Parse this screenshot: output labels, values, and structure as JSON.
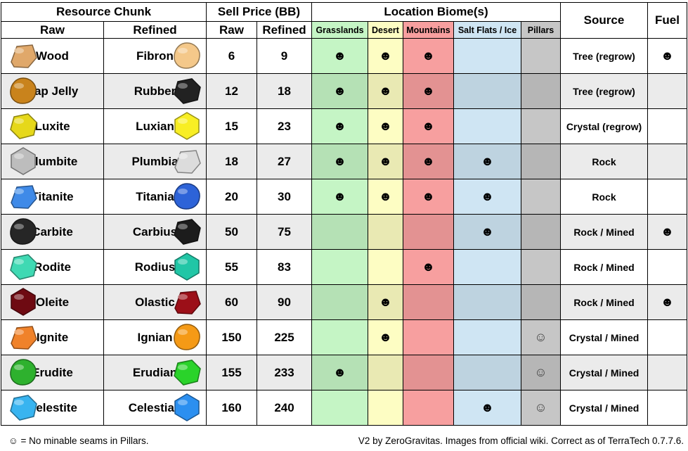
{
  "headers": {
    "resource_chunk": "Resource Chunk",
    "sell_price": "Sell Price (BB)",
    "location_biome": "Location Biome(s)",
    "source": "Source",
    "fuel": "Fuel",
    "raw": "Raw",
    "refined": "Refined",
    "price_raw": "Raw",
    "price_refined": "Refined",
    "biomes": [
      "Grasslands",
      "Desert",
      "Mountains",
      "Salt Flats / Ice",
      "Pillars"
    ]
  },
  "biome_colors": [
    "#c5f5c5",
    "#fdfdc3",
    "#f79f9f",
    "#cfe5f3",
    "#c6c6c6"
  ],
  "symbols": {
    "present": "☻",
    "no_seams": "☺"
  },
  "chart_data": {
    "type": "table",
    "columns": [
      "Raw",
      "Refined",
      "Raw Price",
      "Refined Price",
      "Grasslands",
      "Desert",
      "Mountains",
      "Salt Flats / Ice",
      "Pillars",
      "Source",
      "Fuel"
    ],
    "rows": [
      {
        "raw": "Wood",
        "refined": "Fibron",
        "raw_price": "6",
        "refined_price": "9",
        "biomes": [
          "☻",
          "☻",
          "☻",
          "",
          ""
        ],
        "source": "Tree (regrow)",
        "fuel": "☻",
        "raw_icon": "wood-chunk-icon",
        "ref_icon": "fibron-icon",
        "raw_color": "#e0a86a",
        "ref_color": "#f4c88a"
      },
      {
        "raw": "Sap Jelly",
        "refined": "Rubber",
        "raw_price": "12",
        "refined_price": "18",
        "biomes": [
          "☻",
          "☻",
          "☻",
          "",
          ""
        ],
        "source": "Tree (regrow)",
        "fuel": "",
        "raw_icon": "sap-jelly-icon",
        "ref_icon": "rubber-icon",
        "raw_color": "#c9831c",
        "ref_color": "#222222"
      },
      {
        "raw": "Luxite",
        "refined": "Luxian",
        "raw_price": "15",
        "refined_price": "23",
        "biomes": [
          "☻",
          "☻",
          "☻",
          "",
          ""
        ],
        "source": "Crystal (regrow)",
        "fuel": "",
        "raw_icon": "luxite-icon",
        "ref_icon": "luxian-icon",
        "raw_color": "#e6d81a",
        "ref_color": "#f8ee24"
      },
      {
        "raw": "Plumbite",
        "refined": "Plumbia",
        "raw_price": "18",
        "refined_price": "27",
        "biomes": [
          "☻",
          "☻",
          "☻",
          "☻",
          ""
        ],
        "source": "Rock",
        "fuel": "",
        "raw_icon": "plumbite-icon",
        "ref_icon": "plumbia-icon",
        "raw_color": "#bdbdbd",
        "ref_color": "#dcdcdc"
      },
      {
        "raw": "Titanite",
        "refined": "Titania",
        "raw_price": "20",
        "refined_price": "30",
        "biomes": [
          "☻",
          "☻",
          "☻",
          "☻",
          ""
        ],
        "source": "Rock",
        "fuel": "",
        "raw_icon": "titanite-icon",
        "ref_icon": "titania-icon",
        "raw_color": "#3f8ae8",
        "ref_color": "#2d63d8"
      },
      {
        "raw": "Carbite",
        "refined": "Carbius",
        "raw_price": "50",
        "refined_price": "75",
        "biomes": [
          "",
          "",
          "",
          "☻",
          ""
        ],
        "source": "Rock / Mined",
        "fuel": "☻",
        "raw_icon": "carbite-icon",
        "ref_icon": "carbius-icon",
        "raw_color": "#262626",
        "ref_color": "#1c1c1c"
      },
      {
        "raw": "Rodite",
        "refined": "Rodius",
        "raw_price": "55",
        "refined_price": "83",
        "biomes": [
          "",
          "",
          "☻",
          "",
          ""
        ],
        "source": "Rock / Mined",
        "fuel": "",
        "raw_icon": "rodite-icon",
        "ref_icon": "rodius-icon",
        "raw_color": "#3fd9b3",
        "ref_color": "#21c6a6"
      },
      {
        "raw": "Oleite",
        "refined": "Olastic",
        "raw_price": "60",
        "refined_price": "90",
        "biomes": [
          "",
          "☻",
          "",
          "",
          ""
        ],
        "source": "Rock / Mined",
        "fuel": "☻",
        "raw_icon": "oleite-icon",
        "ref_icon": "olastic-icon",
        "raw_color": "#6e0a12",
        "ref_color": "#9c0f18"
      },
      {
        "raw": "Ignite",
        "refined": "Ignian",
        "raw_price": "150",
        "refined_price": "225",
        "biomes": [
          "",
          "☻",
          "",
          "",
          "☺"
        ],
        "source": "Crystal / Mined",
        "fuel": "",
        "raw_icon": "ignite-icon",
        "ref_icon": "ignian-icon",
        "raw_color": "#f0822a",
        "ref_color": "#f59a16"
      },
      {
        "raw": "Erudite",
        "refined": "Erudian",
        "raw_price": "155",
        "refined_price": "233",
        "biomes": [
          "☻",
          "",
          "",
          "",
          "☺"
        ],
        "source": "Crystal / Mined",
        "fuel": "",
        "raw_icon": "erudite-icon",
        "ref_icon": "erudian-icon",
        "raw_color": "#2eb12e",
        "ref_color": "#2ad32a"
      },
      {
        "raw": "Celestite",
        "refined": "Celestian",
        "raw_price": "160",
        "refined_price": "240",
        "biomes": [
          "",
          "",
          "",
          "☻",
          "☺"
        ],
        "source": "Crystal / Mined",
        "fuel": "",
        "raw_icon": "celestite-icon",
        "ref_icon": "celestian-icon",
        "raw_color": "#38b4f0",
        "ref_color": "#2b8ff0"
      }
    ]
  },
  "footer": {
    "legend": "☺ = No minable seams in Pillars.",
    "credit": "V2 by ZeroGravitas. Images from official wiki. Correct as of TerraTech 0.7.7.6."
  }
}
